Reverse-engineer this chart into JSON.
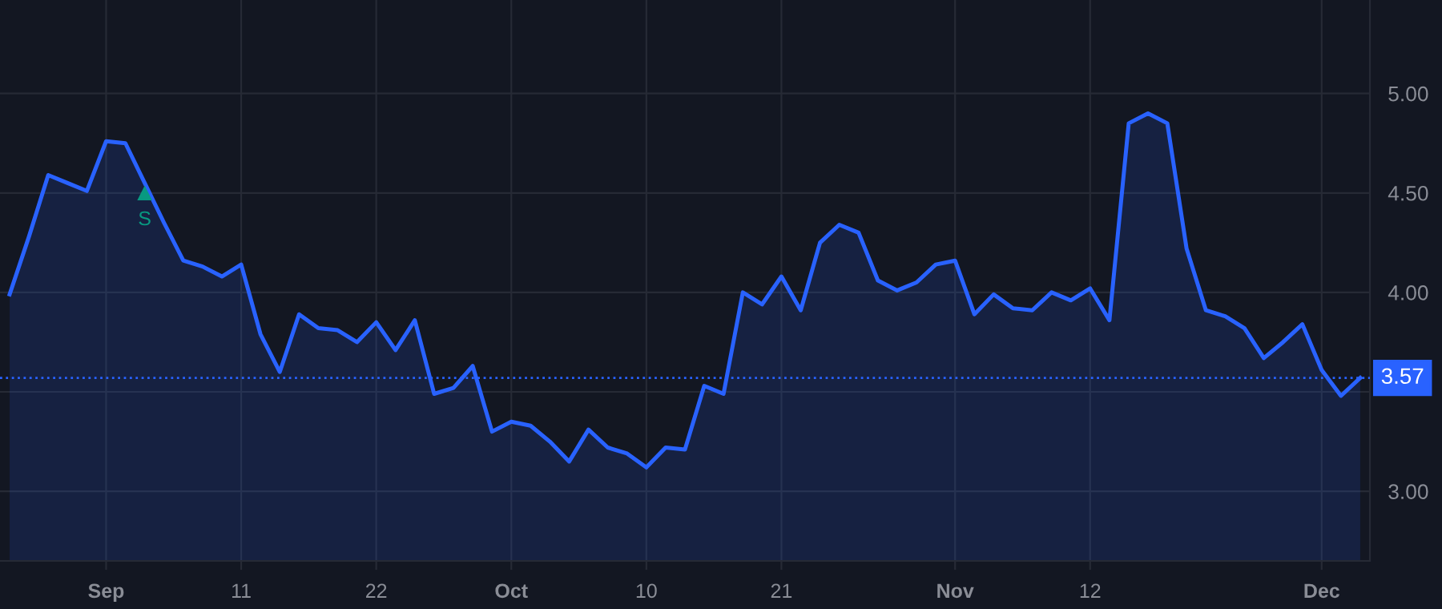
{
  "chart_data": {
    "type": "area",
    "categories": [
      null,
      null,
      null,
      null,
      null,
      "Sep",
      null,
      null,
      null,
      null,
      null,
      null,
      "11",
      null,
      null,
      null,
      null,
      null,
      null,
      "22",
      null,
      null,
      null,
      null,
      null,
      null,
      "Oct",
      null,
      null,
      null,
      null,
      null,
      null,
      "10",
      null,
      null,
      null,
      null,
      null,
      null,
      "21",
      null,
      null,
      null,
      null,
      null,
      null,
      null,
      null,
      "Nov",
      null,
      null,
      null,
      null,
      null,
      null,
      "12",
      null,
      null,
      null,
      null,
      null,
      null,
      null,
      null,
      null,
      null,
      null,
      "Dec",
      null,
      null
    ],
    "series": [
      {
        "color": "#2962ff",
        "values": [
          3.99,
          4.28,
          4.59,
          4.55,
          4.51,
          4.76,
          4.75,
          4.55,
          4.35,
          4.16,
          4.13,
          4.08,
          4.14,
          3.79,
          3.6,
          3.89,
          3.82,
          3.81,
          3.75,
          3.85,
          3.71,
          3.86,
          3.49,
          3.52,
          3.63,
          3.3,
          3.35,
          3.33,
          3.25,
          3.15,
          3.31,
          3.22,
          3.19,
          3.12,
          3.22,
          3.21,
          3.53,
          3.49,
          4.0,
          3.94,
          4.08,
          3.91,
          4.25,
          4.34,
          4.3,
          4.06,
          4.01,
          4.05,
          4.14,
          4.16,
          3.89,
          3.99,
          3.92,
          3.91,
          4.0,
          3.96,
          4.02,
          3.86,
          4.85,
          4.9,
          4.85,
          4.22,
          3.91,
          3.88,
          3.82,
          3.67,
          3.75,
          3.84,
          3.61,
          3.48,
          3.57
        ]
      },
      {
        "type": "scatter",
        "color": "#089981",
        "marker": "triangle",
        "values": [
          null,
          null,
          null,
          null,
          null,
          null,
          null,
          4.5,
          null,
          null,
          null,
          null,
          null,
          null,
          null,
          null,
          null,
          null,
          null,
          null,
          null,
          null,
          null,
          null,
          null,
          null,
          null,
          null,
          null,
          null,
          null,
          null,
          null,
          null,
          null,
          null,
          null,
          null,
          null,
          null,
          null,
          null,
          null,
          null,
          null,
          null,
          null,
          null,
          null,
          null,
          null,
          null,
          null,
          null,
          null,
          null,
          null,
          null,
          null,
          null,
          null,
          null,
          null,
          null,
          null,
          null,
          null,
          null,
          null,
          null,
          null
        ],
        "value_labels": [
          null,
          null,
          null,
          null,
          null,
          null,
          null,
          "S",
          null,
          null,
          null,
          null,
          null,
          null,
          null,
          null,
          null,
          null,
          null,
          null,
          null,
          null,
          null,
          null,
          null,
          null,
          null,
          null,
          null,
          null,
          null,
          null,
          null,
          null,
          null,
          null,
          null,
          null,
          null,
          null,
          null,
          null,
          null,
          null,
          null,
          null,
          null,
          null,
          null,
          null,
          null,
          null,
          null,
          null,
          null,
          null,
          null,
          null,
          null,
          null,
          null,
          null,
          null,
          null,
          null,
          null,
          null,
          null,
          null,
          null,
          null
        ]
      }
    ],
    "ylim": [
      2.65,
      5.47
    ],
    "yticks": [
      {
        "value": 3,
        "label": "3.00"
      },
      {
        "value": 3.5,
        "label": null
      },
      {
        "value": 4,
        "label": "4.00"
      },
      {
        "value": 4.5,
        "label": "4.50"
      },
      {
        "value": 5,
        "label": "5.00"
      }
    ],
    "ref_lines": [
      {
        "axis": "y",
        "value": 3.57,
        "label": "3.57",
        "color": "#2962ff",
        "line_style": "dotted"
      }
    ],
    "grid": true,
    "legend": false
  }
}
